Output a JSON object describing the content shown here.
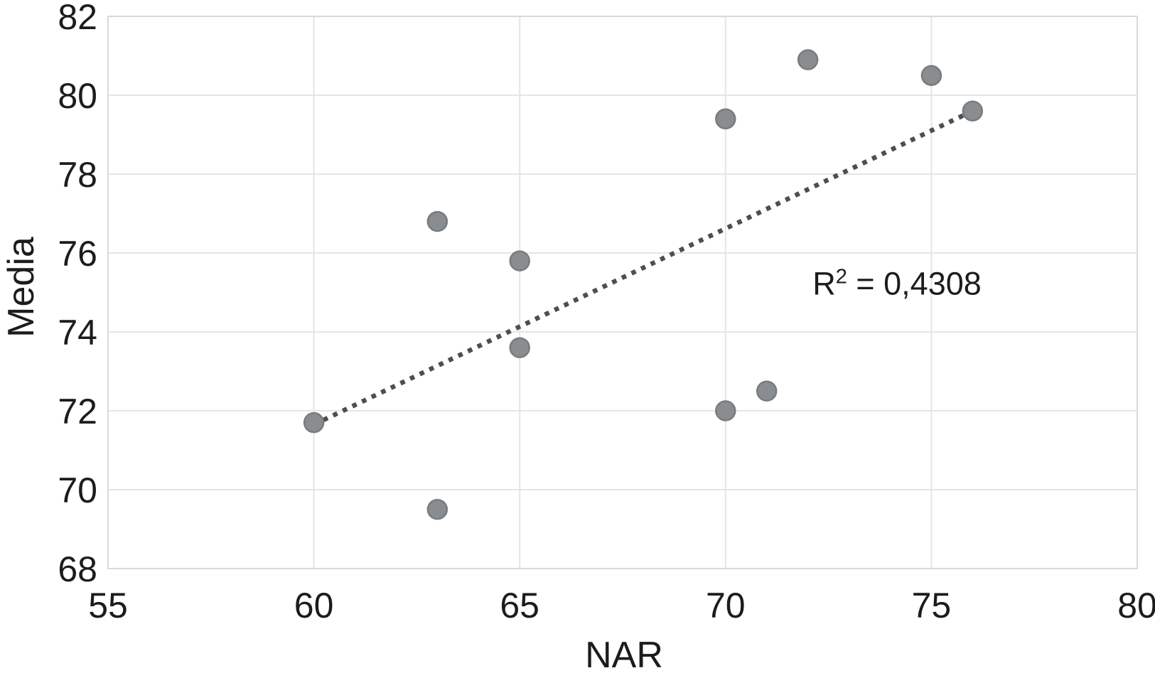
{
  "chart_data": {
    "type": "scatter",
    "title": "",
    "xlabel": "NAR",
    "ylabel": "Media",
    "xlim": [
      55,
      80
    ],
    "ylim": [
      68,
      82
    ],
    "x_ticks": [
      "55",
      "60",
      "65",
      "70",
      "75",
      "80"
    ],
    "y_ticks": [
      "68",
      "70",
      "72",
      "74",
      "76",
      "78",
      "80",
      "82"
    ],
    "grid": true,
    "legend": "none",
    "points": [
      {
        "x": 60,
        "y": 71.7
      },
      {
        "x": 63,
        "y": 76.8
      },
      {
        "x": 63,
        "y": 69.5
      },
      {
        "x": 65,
        "y": 75.8
      },
      {
        "x": 65,
        "y": 73.6
      },
      {
        "x": 70,
        "y": 79.4
      },
      {
        "x": 70,
        "y": 72.0
      },
      {
        "x": 71,
        "y": 72.5
      },
      {
        "x": 72,
        "y": 80.9
      },
      {
        "x": 75,
        "y": 80.5
      },
      {
        "x": 76,
        "y": 79.6
      }
    ],
    "trendline": {
      "type": "linear",
      "style": "dotted",
      "x1": 60,
      "y1": 71.65,
      "x2": 76,
      "y2": 79.6
    },
    "annotation": {
      "text": "R² = 0,4308",
      "r_base": "R",
      "r_sup": "2",
      "r_rest": " = 0,4308",
      "x": 74.1,
      "y": 75.2
    }
  },
  "colors": {
    "point_fill": "#8a8d8f",
    "point_border": "#797c7e",
    "trendline": "#4e4e4e",
    "grid": "#e4e5e5",
    "axis_border": "#d8dad9",
    "text": "#1c1c1c"
  }
}
